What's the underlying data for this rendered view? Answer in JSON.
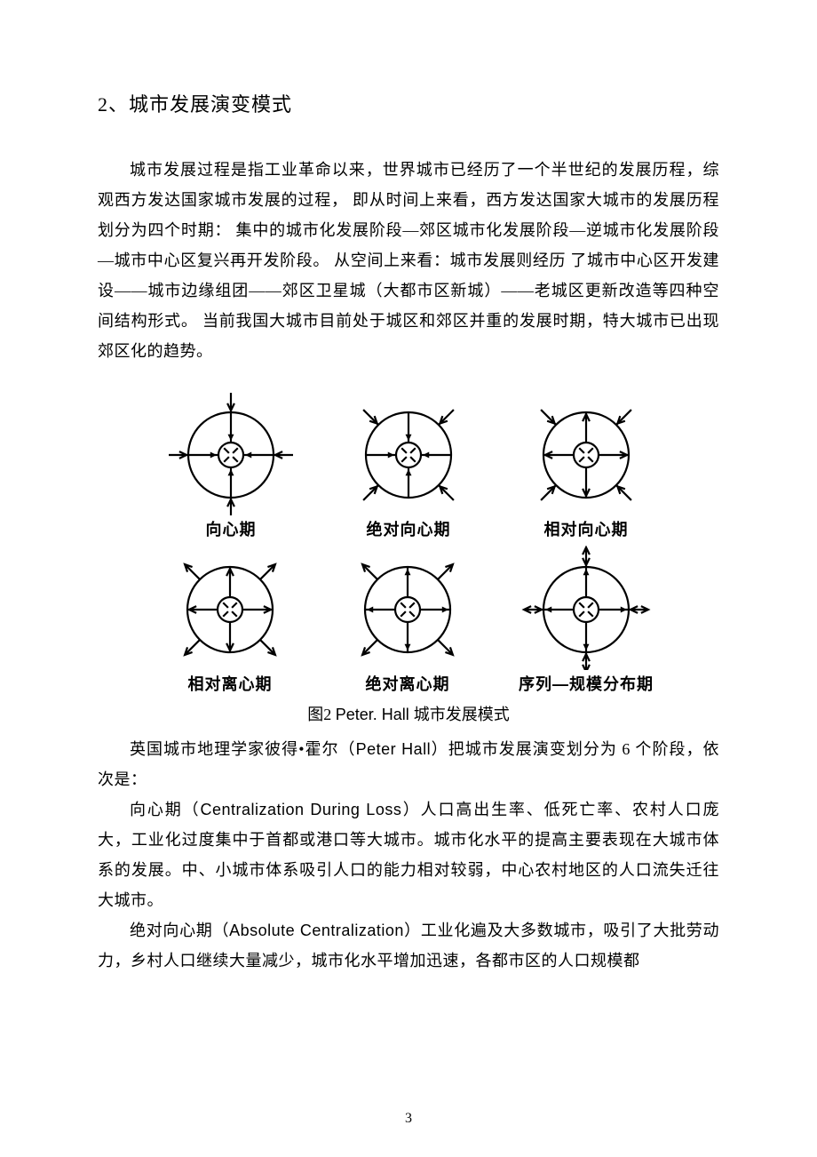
{
  "heading": "2、城市发展演变模式",
  "paragraphs": {
    "p1": "城市发展过程是指工业革命以来，世界城市已经历了一个半世纪的发展历程，综观西方发达国家城市发展的过程， 即从时间上来看，西方发达国家大城市的发展历程划分为四个时期： 集中的城市化发展阶段—郊区城市化发展阶段—逆城市化发展阶段—城市中心区复兴再开发阶段。 从空间上来看：城市发展则经历 了城市中心区开发建设——城市边缘组团——郊区卫星城（大都市区新城）——老城区更新改造等四种空间结构形式。 当前我国大城市目前处于城区和郊区并重的发展时期，特大城市已出现郊区化的趋势。",
    "p2_pre": "英国城市地理学家彼得•霍尔（",
    "p2_mid": "Peter Hall",
    "p2_post": "）把城市发展演变划分为 6 个阶段，依次是：",
    "p3_pre": "向心期（",
    "p3_mid": "Centralization During Loss",
    "p3_post": "）人口高出生率、低死亡率、农村人口庞大，工业化过度集中于首都或港口等大城市。城市化水平的提高主要表现在大城市体系的发展。中、小城市体系吸引人口的能力相对较弱，中心农村地区的人口流失迁往大城市。",
    "p4_pre": "绝对向心期（",
    "p4_mid": "Absolute Centralization",
    "p4_post": "）工业化遍及大多数城市，吸引了大批劳动力，乡村人口继续大量减少，城市化水平增加迅速，各都市区的人口规模都"
  },
  "figure": {
    "caption_pre": "图2    ",
    "caption_mid": "Peter. Hall ",
    "caption_post": " 城市发展模式",
    "stroke_color": "#000000",
    "stroke_width": 2.2,
    "cells": [
      {
        "label": "向心期",
        "inner_arrows": "in_solid",
        "outer": "in_cardinal"
      },
      {
        "label": "绝对向心期",
        "inner_arrows": "in_solid",
        "outer": "in_diagonal"
      },
      {
        "label": "相对向心期",
        "inner_arrows": "out_hollow",
        "outer": "in_diagonal"
      },
      {
        "label": "相对离心期",
        "inner_arrows": "out_hollow",
        "outer": "out_diagonal"
      },
      {
        "label": "绝对离心期",
        "inner_arrows": "out_solid",
        "outer": "out_diagonal"
      },
      {
        "label": "序列—规模分布期",
        "inner_arrows": "out_solid",
        "outer": "bi_cardinal"
      }
    ]
  },
  "page_number": "3"
}
